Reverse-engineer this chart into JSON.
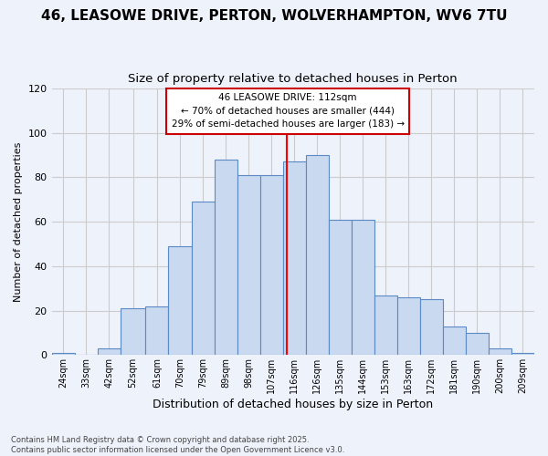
{
  "title": "46, LEASOWE DRIVE, PERTON, WOLVERHAMPTON, WV6 7TU",
  "subtitle": "Size of property relative to detached houses in Perton",
  "xlabel": "Distribution of detached houses by size in Perton",
  "ylabel": "Number of detached properties",
  "categories": [
    "24sqm",
    "33sqm",
    "42sqm",
    "52sqm",
    "61sqm",
    "70sqm",
    "79sqm",
    "89sqm",
    "98sqm",
    "107sqm",
    "116sqm",
    "126sqm",
    "135sqm",
    "144sqm",
    "153sqm",
    "163sqm",
    "172sqm",
    "181sqm",
    "190sqm",
    "200sqm",
    "209sqm"
  ],
  "bin_edges": [
    19.5,
    28.5,
    37.5,
    46.5,
    56.5,
    65.5,
    74.5,
    83.5,
    92.5,
    101.5,
    110.5,
    119.5,
    128.5,
    137.5,
    146.5,
    155.5,
    164.5,
    173.5,
    182.5,
    191.5,
    200.5,
    209.5
  ],
  "hist_values": [
    1,
    0,
    3,
    21,
    22,
    49,
    69,
    88,
    81,
    81,
    87,
    90,
    61,
    61,
    27,
    26,
    25,
    13,
    10,
    3,
    1
  ],
  "bar_color": "#c9d9f0",
  "bar_edge_color": "#5b8ac5",
  "grid_color": "#cccccc",
  "bg_color": "#eef2fb",
  "red_line_x": 112,
  "annotation_text": "46 LEASOWE DRIVE: 112sqm\n← 70% of detached houses are smaller (444)\n29% of semi-detached houses are larger (183) →",
  "annotation_border_color": "#cc0000",
  "ylim": [
    0,
    120
  ],
  "yticks": [
    0,
    20,
    40,
    60,
    80,
    100,
    120
  ],
  "footer": "Contains HM Land Registry data © Crown copyright and database right 2025.\nContains public sector information licensed under the Open Government Licence v3.0.",
  "title_fontsize": 11,
  "subtitle_fontsize": 9.5
}
